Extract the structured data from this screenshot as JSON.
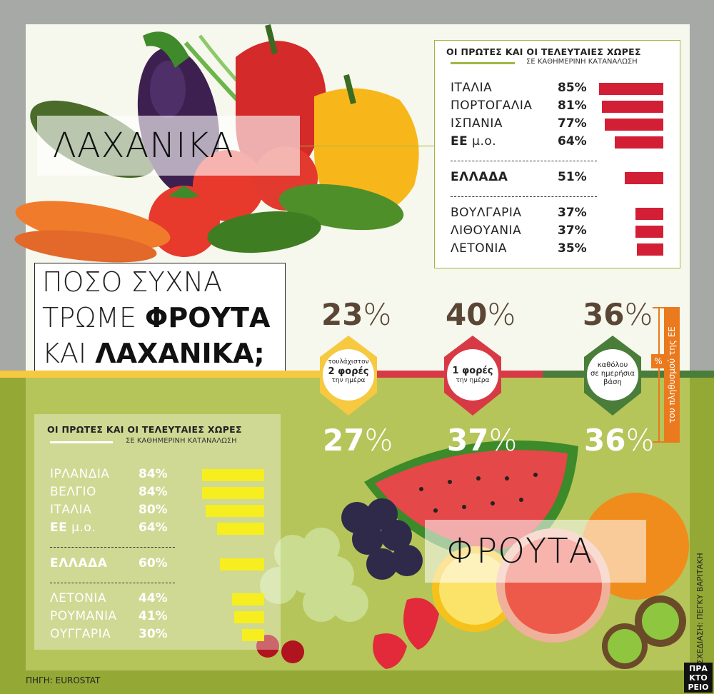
{
  "banners": {
    "vegetables": "ΛΑΧΑΝΙΚΑ",
    "fruits": "ΦΡΟΥΤΑ"
  },
  "question": {
    "line1": "ΠΟΣΟ ΣΥΧΝΑ",
    "line2_light": "ΤΡΩΜΕ ",
    "line2_bold": "ΦΡΟΥΤΑ",
    "line3_light": "ΚΑΙ ",
    "line3_bold": "ΛΑΧΑΝΙΚΑ;"
  },
  "side_tag": {
    "sign": "%",
    "text": "του πληθυσμού της ΕΕ"
  },
  "frequency": {
    "categories": [
      {
        "top": "τουλάχιστον",
        "main": "2 φορές",
        "bottom": "την ημέρα",
        "color": "#f6c940"
      },
      {
        "top": "",
        "main": "1 φορές",
        "bottom": "την ημέρα",
        "color": "#d83a45"
      },
      {
        "top": "καθόλου",
        "main": "σε ημερήσια",
        "bottom": "βάση",
        "color": "#4a7d3a"
      }
    ],
    "vegetables_pct": [
      "23",
      "40",
      "36"
    ],
    "fruits_pct": [
      "27",
      "37",
      "36"
    ],
    "pct_sign": "%"
  },
  "chart_data": [
    {
      "type": "bar",
      "title": "ΟΙ ΠΡΩΤΕΣ ΚΑΙ ΟΙ ΤΕΛΕΥΤΑΙΕΣ ΧΩΡΕΣ",
      "subtitle": "ΣΕ ΚΑΘΗΜΕΡΙΝΗ ΚΑΤΑΝΑΛΩΣΗ",
      "color": "#d21f35",
      "categories": [
        "ΙΤΑΛΙΑ",
        "ΠΟΡΤΟΓΑΛΙΑ",
        "ΙΣΠΑΝΙΑ",
        "ΕΕ μ.ο.",
        "ΕΛΛΑΔΑ",
        "ΒΟΥΛΓΑΡΙΑ",
        "ΛΙΘΟΥΑΝΙΑ",
        "ΛΕΤΟΝΙΑ"
      ],
      "labels": [
        "85%",
        "81%",
        "77%",
        "64%",
        "51%",
        "37%",
        "37%",
        "35%"
      ],
      "values": [
        85,
        81,
        77,
        64,
        51,
        37,
        37,
        35
      ]
    },
    {
      "type": "bar",
      "title": "ΟΙ ΠΡΩΤΕΣ ΚΑΙ ΟΙ ΤΕΛΕΥΤΑΙΕΣ ΧΩΡΕΣ",
      "subtitle": "ΣΕ ΚΑΘΗΜΕΡΙΝΗ ΚΑΤΑΝΑΛΩΣΗ",
      "color": "#f6ee1f",
      "categories": [
        "ΙΡΛΑΝΔΙΑ",
        "ΒΕΛΓΙΟ",
        "ΙΤΑΛΙΑ",
        "ΕΕ μ.ο.",
        "ΕΛΛΑΔΑ",
        "ΛΕΤΟΝΙΑ",
        "ΡΟΥΜΑΝΙΑ",
        "ΟΥΓΓΑΡΙΑ"
      ],
      "labels": [
        "84%",
        "84%",
        "80%",
        "64%",
        "60%",
        "44%",
        "41%",
        "30%"
      ],
      "values": [
        84,
        84,
        80,
        64,
        60,
        44,
        41,
        30
      ]
    }
  ],
  "credit": "ΣΧΕΔΙΑΣΗ: ΠΕΓΚΥ ΒΑΡΙΤΑΚΗ",
  "source": "ΠΗΓΗ: EUROSTAT",
  "logo": [
    "ΠΡΑ",
    "ΚΤΟ",
    "ΡΕΙΟ"
  ]
}
